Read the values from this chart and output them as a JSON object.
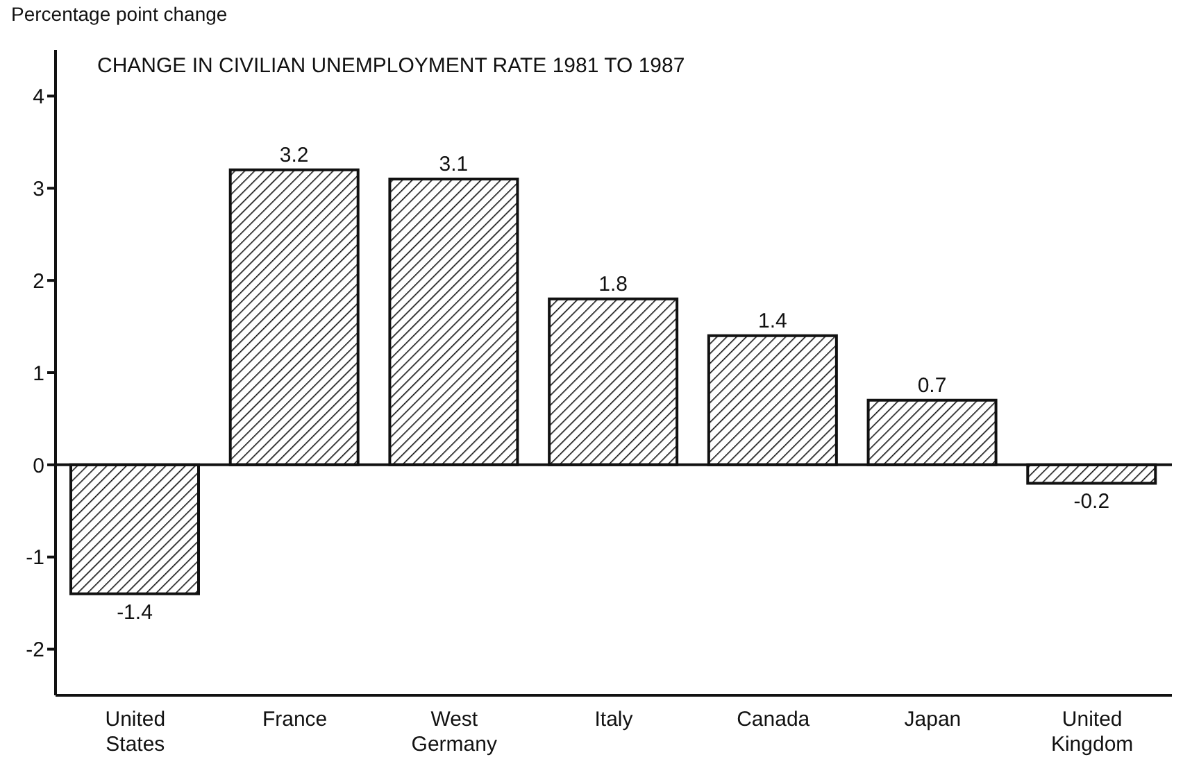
{
  "chart_data": {
    "type": "bar",
    "title": "CHANGE IN CIVILIAN UNEMPLOYMENT RATE 1981 TO 1987",
    "ylabel": "Percentage point change",
    "categories": [
      "United States",
      "France",
      "West Germany",
      "Italy",
      "Canada",
      "Japan",
      "United Kingdom"
    ],
    "values": [
      -1.4,
      3.2,
      3.1,
      1.8,
      1.4,
      0.7,
      -0.2
    ],
    "color": "#111111",
    "ylim": [
      -2.5,
      4.5
    ],
    "yticks": [
      -2,
      -1,
      0,
      1,
      2,
      3,
      4
    ],
    "data_labels": true
  }
}
